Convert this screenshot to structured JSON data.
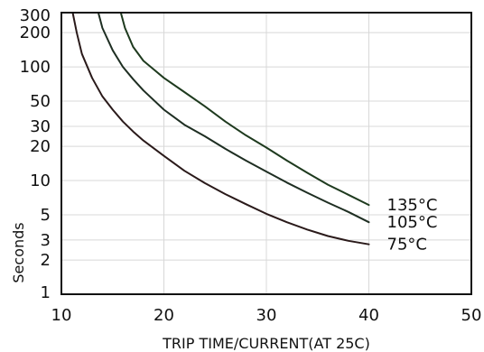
{
  "chart_data": {
    "type": "line",
    "title": "",
    "xlabel": "TRIP TIME/CURRENT(AT 25C)",
    "ylabel": "Seconds",
    "xlim": [
      10,
      50
    ],
    "ylim": [
      1,
      300
    ],
    "y_scale": "log",
    "grid": true,
    "x_ticks": [
      10,
      20,
      30,
      40,
      50
    ],
    "x_tick_labels": [
      "10",
      "20",
      "30",
      "40",
      "50"
    ],
    "y_ticks": [
      1,
      2,
      3,
      5,
      10,
      20,
      30,
      50,
      100,
      200,
      300
    ],
    "y_tick_labels": [
      "1",
      "2",
      "3",
      "5",
      "10",
      "20",
      "30",
      "50",
      "100",
      "200",
      "300"
    ],
    "series": [
      {
        "name": "135°C",
        "color": "#1e3a1e",
        "x": [
          15.8,
          16.2,
          17,
          18,
          19,
          20,
          22,
          24,
          26,
          28,
          30,
          32,
          34,
          36,
          38,
          40
        ],
        "y": [
          300,
          220,
          150,
          113,
          95,
          80,
          60,
          45,
          33,
          25,
          19.5,
          15,
          11.7,
          9.2,
          7.5,
          6.1
        ]
      },
      {
        "name": "105°C",
        "color": "#1e2e22",
        "x": [
          13.6,
          14,
          15,
          16,
          17,
          18,
          20,
          22,
          24,
          26,
          28,
          30,
          32,
          34,
          36,
          38,
          40
        ],
        "y": [
          300,
          220,
          140,
          100,
          78,
          62,
          42,
          31,
          24.5,
          19,
          15,
          12,
          9.6,
          7.8,
          6.4,
          5.3,
          4.3
        ]
      },
      {
        "name": "75°C",
        "color": "#2a1a1a",
        "x": [
          11.1,
          11.5,
          12,
          13,
          14,
          15,
          16,
          17,
          18,
          20,
          22,
          24,
          26,
          28,
          30,
          32,
          34,
          36,
          38,
          40
        ],
        "y": [
          300,
          200,
          130,
          80,
          55,
          42,
          33,
          27,
          22.5,
          16.5,
          12.2,
          9.5,
          7.6,
          6.2,
          5.1,
          4.3,
          3.7,
          3.25,
          2.95,
          2.75
        ]
      }
    ]
  }
}
